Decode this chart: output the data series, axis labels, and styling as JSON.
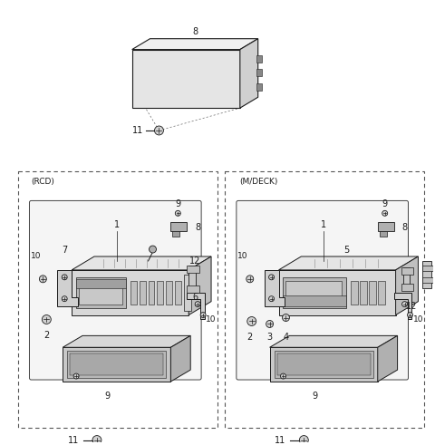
{
  "bg_color": "#ffffff",
  "line_color": "#1a1a1a",
  "dash_color": "#666666",
  "fig_width": 4.8,
  "fig_height": 4.91,
  "dpi": 100
}
